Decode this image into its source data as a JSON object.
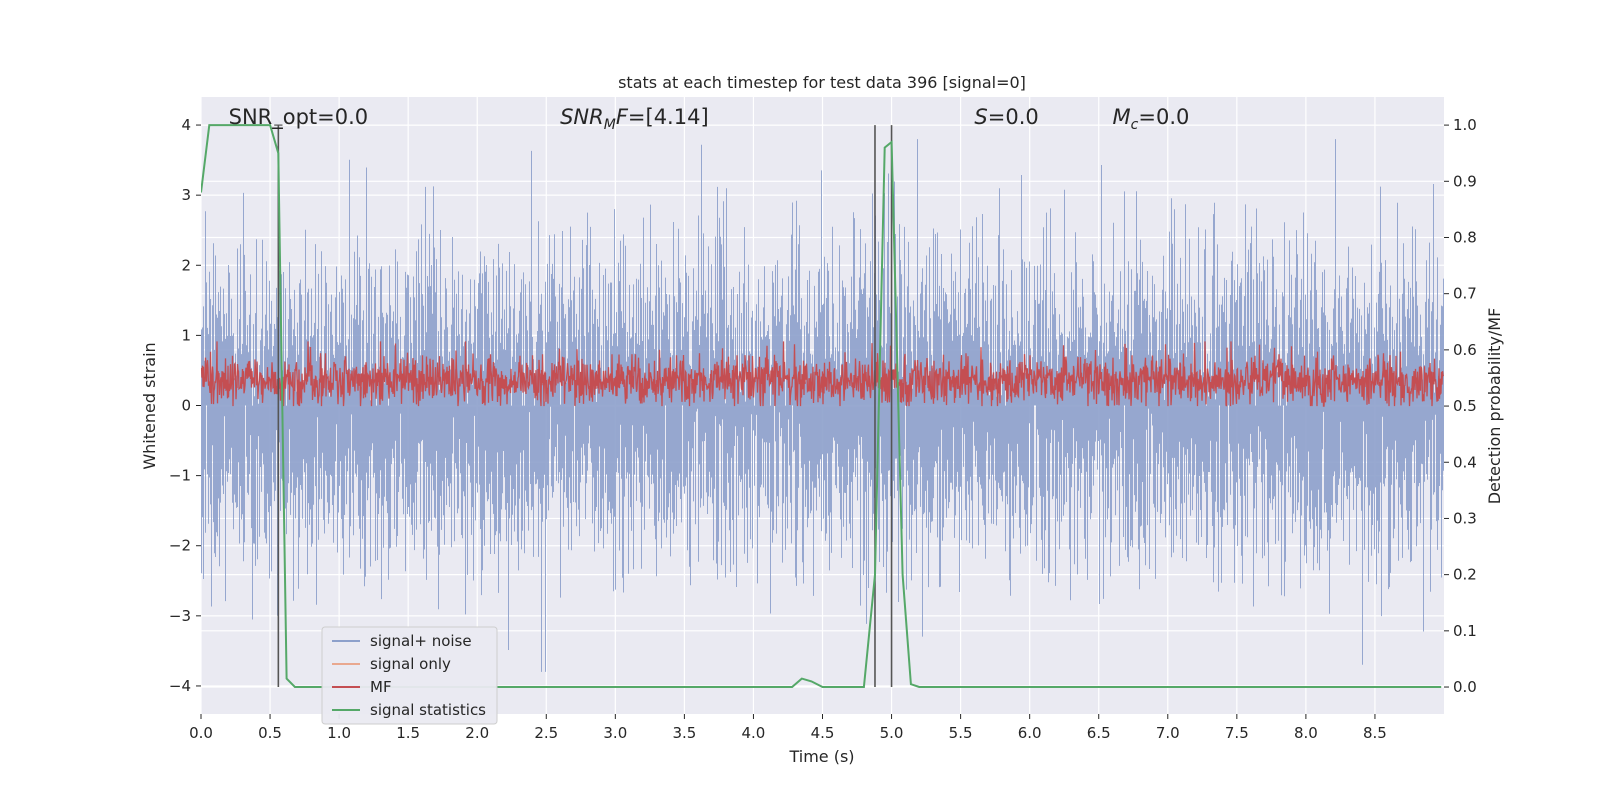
{
  "chart_data": {
    "type": "line",
    "title": "stats at each timestep for test data 396 [signal=0]",
    "xlabel": "Time (s)",
    "ylabel": "Whitened strain",
    "ylabel_right": "Detection probability/MF",
    "xlim": [
      0.0,
      9.0
    ],
    "ylim": [
      -4.4,
      4.4
    ],
    "ylim_right": [
      -0.048,
      1.05
    ],
    "grid": true,
    "legend_position": "lower-left",
    "x_ticks": [
      "0.0",
      "0.5",
      "1.0",
      "1.5",
      "2.0",
      "2.5",
      "3.0",
      "3.5",
      "4.0",
      "4.5",
      "5.0",
      "5.5",
      "6.0",
      "6.5",
      "7.0",
      "7.5",
      "8.0",
      "8.5"
    ],
    "y_ticks": [
      "4",
      "3",
      "2",
      "1",
      "0",
      "−1",
      "−2",
      "−3",
      "−4"
    ],
    "y_ticks_right": [
      "1.0",
      "0.9",
      "0.8",
      "0.7",
      "0.6",
      "0.5",
      "0.4",
      "0.3",
      "0.2",
      "0.1",
      "0.0"
    ],
    "annotations": [
      {
        "text": "SNR_opt=0.0",
        "x": 0.2
      },
      {
        "text": "SNR_MF=[4.14]",
        "x": 2.6
      },
      {
        "text": "S=0.0",
        "x": 5.6
      },
      {
        "text": "M_c=0.0",
        "x": 6.6
      }
    ],
    "vlines": [
      0.56,
      4.88,
      5.0
    ],
    "series": [
      {
        "name": "signal+ noise",
        "color": "#8da0cb",
        "axis": "left",
        "description": "whitened noise samples, roughly within ±3, peaks near ±3.8"
      },
      {
        "name": "signal only",
        "color": "#e9a88f",
        "axis": "left",
        "values": []
      },
      {
        "name": "MF",
        "color": "#c44e52",
        "axis": "right",
        "description": "matched-filter output fluctuating between 0.5 and 0.62"
      },
      {
        "name": "signal statistics",
        "color": "#55a868",
        "axis": "right",
        "x": [
          0.0,
          0.06,
          0.5,
          0.56,
          0.62,
          0.68,
          4.28,
          4.35,
          4.42,
          4.5,
          4.8,
          4.88,
          4.95,
          5.0,
          5.08,
          5.14,
          5.2,
          8.98
        ],
        "y": [
          0.88,
          1.0,
          1.0,
          0.95,
          0.015,
          0.0,
          0.0,
          0.015,
          0.01,
          0.0,
          0.0,
          0.2,
          0.96,
          0.97,
          0.2,
          0.005,
          0.0,
          0.0
        ]
      }
    ],
    "legend": [
      "signal+ noise",
      "signal only",
      "MF",
      "signal statistics"
    ]
  }
}
